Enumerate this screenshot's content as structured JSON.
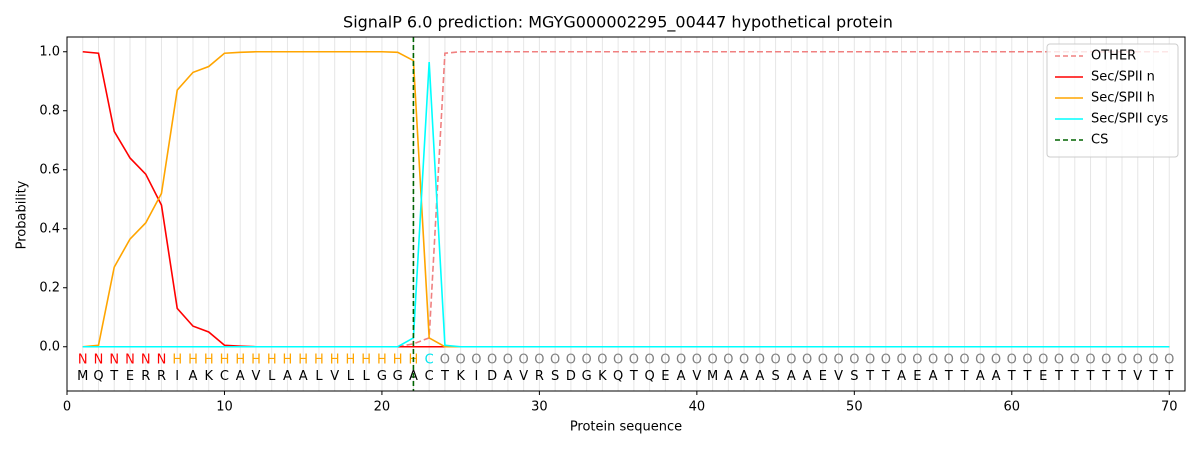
{
  "chart_data": {
    "type": "line",
    "title": "SignalP 6.0 prediction: MGYG000002295_00447 hypothetical protein",
    "xlabel": "Protein sequence",
    "ylabel": "Probability",
    "xlim": [
      0,
      71
    ],
    "ylim": [
      -0.15,
      1.05
    ],
    "xticks": [
      0,
      10,
      20,
      30,
      40,
      50,
      60,
      70
    ],
    "yticks": [
      {
        "value": 0,
        "label": "0.0"
      },
      {
        "value": 0.2,
        "label": "0.2"
      },
      {
        "value": 0.4,
        "label": "0.4"
      },
      {
        "value": 0.6,
        "label": "0.6"
      },
      {
        "value": 0.8,
        "label": "0.8"
      },
      {
        "value": 1,
        "label": "1.0"
      }
    ],
    "grid": true,
    "legend": "upper right",
    "x": [
      1,
      2,
      3,
      4,
      5,
      6,
      7,
      8,
      9,
      10,
      11,
      12,
      13,
      14,
      15,
      16,
      17,
      18,
      19,
      20,
      21,
      22,
      23,
      24,
      25,
      26,
      27,
      28,
      29,
      30,
      31,
      32,
      33,
      34,
      35,
      36,
      37,
      38,
      39,
      40,
      41,
      42,
      43,
      44,
      45,
      46,
      47,
      48,
      49,
      50,
      51,
      52,
      53,
      54,
      55,
      56,
      57,
      58,
      59,
      60,
      61,
      62,
      63,
      64,
      65,
      66,
      67,
      68,
      69,
      70
    ],
    "sequence": [
      "M",
      "Q",
      "T",
      "E",
      "R",
      "R",
      "I",
      "A",
      "K",
      "C",
      "A",
      "V",
      "L",
      "A",
      "A",
      "L",
      "V",
      "L",
      "L",
      "G",
      "G",
      "A",
      "C",
      "T",
      "K",
      "I",
      "D",
      "A",
      "V",
      "R",
      "S",
      "D",
      "G",
      "K",
      "Q",
      "T",
      "Q",
      "E",
      "A",
      "V",
      "M",
      "A",
      "A",
      "A",
      "S",
      "A",
      "A",
      "E",
      "V",
      "S",
      "T",
      "T",
      "A",
      "E",
      "A",
      "T",
      "T",
      "A",
      "A",
      "T",
      "T",
      "E",
      "T",
      "T",
      "T",
      "T",
      "T",
      "V",
      "T",
      "T"
    ],
    "labels": [
      "N",
      "N",
      "N",
      "N",
      "N",
      "N",
      "H",
      "H",
      "H",
      "H",
      "H",
      "H",
      "H",
      "H",
      "H",
      "H",
      "H",
      "H",
      "H",
      "H",
      "H",
      "H",
      "C",
      "O",
      "O",
      "O",
      "O",
      "O",
      "O",
      "O",
      "O",
      "O",
      "O",
      "O",
      "O",
      "O",
      "O",
      "O",
      "O",
      "O",
      "O",
      "O",
      "O",
      "O",
      "O",
      "O",
      "O",
      "O",
      "O",
      "O",
      "O",
      "O",
      "O",
      "O",
      "O",
      "O",
      "O",
      "O",
      "O",
      "O",
      "O",
      "O",
      "O",
      "O",
      "O",
      "O",
      "O",
      "O",
      "O",
      "O"
    ],
    "label_colors": {
      "N": "#ff0000",
      "H": "#ffa500",
      "C": "#00e5ee",
      "O": "#808080"
    },
    "series": [
      {
        "name": "OTHER",
        "color": "#f08080",
        "dash": true,
        "values": [
          0,
          0,
          0,
          0,
          0,
          0,
          0,
          0,
          0,
          0,
          0,
          0,
          0,
          0,
          0,
          0,
          0,
          0,
          0,
          0,
          0,
          0.01,
          0.03,
          0.995,
          1,
          1,
          1,
          1,
          1,
          1,
          1,
          1,
          1,
          1,
          1,
          1,
          1,
          1,
          1,
          1,
          1,
          1,
          1,
          1,
          1,
          1,
          1,
          1,
          1,
          1,
          1,
          1,
          1,
          1,
          1,
          1,
          1,
          1,
          1,
          1,
          1,
          1,
          1,
          1,
          1,
          1,
          1,
          1,
          1,
          1
        ]
      },
      {
        "name": "Sec/SPII n",
        "color": "#ff0000",
        "values": [
          1,
          0.995,
          0.73,
          0.64,
          0.585,
          0.48,
          0.13,
          0.07,
          0.05,
          0.005,
          0.002,
          0,
          0,
          0,
          0,
          0,
          0,
          0,
          0,
          0,
          0,
          0,
          0,
          0,
          0,
          0,
          0,
          0,
          0,
          0,
          0,
          0,
          0,
          0,
          0,
          0,
          0,
          0,
          0,
          0,
          0,
          0,
          0,
          0,
          0,
          0,
          0,
          0,
          0,
          0,
          0,
          0,
          0,
          0,
          0,
          0,
          0,
          0,
          0,
          0,
          0,
          0,
          0,
          0,
          0,
          0,
          0,
          0,
          0,
          0
        ]
      },
      {
        "name": "Sec/SPII h",
        "color": "#ffa500",
        "values": [
          0,
          0.005,
          0.27,
          0.365,
          0.42,
          0.52,
          0.87,
          0.93,
          0.95,
          0.995,
          0.998,
          1,
          1,
          1,
          1,
          1,
          1,
          1,
          1,
          1,
          0.998,
          0.97,
          0.03,
          0,
          0,
          0,
          0,
          0,
          0,
          0,
          0,
          0,
          0,
          0,
          0,
          0,
          0,
          0,
          0,
          0,
          0,
          0,
          0,
          0,
          0,
          0,
          0,
          0,
          0,
          0,
          0,
          0,
          0,
          0,
          0,
          0,
          0,
          0,
          0,
          0,
          0,
          0,
          0,
          0,
          0,
          0,
          0,
          0,
          0,
          0
        ]
      },
      {
        "name": "Sec/SPII cys",
        "color": "#00ffff",
        "values": [
          0,
          0,
          0,
          0,
          0,
          0,
          0,
          0,
          0,
          0,
          0,
          0,
          0,
          0,
          0,
          0,
          0,
          0,
          0,
          0,
          0,
          0.03,
          0.965,
          0.005,
          0,
          0,
          0,
          0,
          0,
          0,
          0,
          0,
          0,
          0,
          0,
          0,
          0,
          0,
          0,
          0,
          0,
          0,
          0,
          0,
          0,
          0,
          0,
          0,
          0,
          0,
          0,
          0,
          0,
          0,
          0,
          0,
          0,
          0,
          0,
          0,
          0,
          0,
          0,
          0,
          0,
          0,
          0,
          0,
          0,
          0
        ]
      }
    ],
    "cs": {
      "name": "CS",
      "color": "#006400",
      "x": 22
    }
  }
}
